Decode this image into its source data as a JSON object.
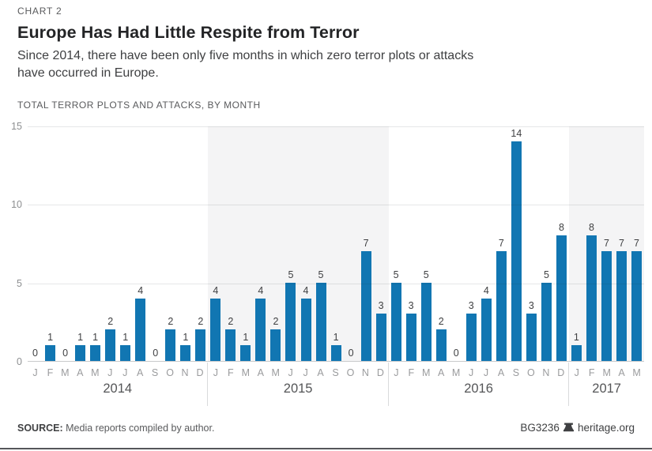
{
  "header": {
    "kicker": "CHART 2",
    "title": "Europe Has Had Little Respite from Terror",
    "subtitle_lines": [
      "Since 2014, there have been only five months in which zero terror plots or attacks",
      "have occurred in Europe."
    ],
    "section_label": "TOTAL TERROR PLOTS AND ATTACKS, BY MONTH"
  },
  "chart_data": {
    "type": "bar",
    "title": "TOTAL TERROR PLOTS AND ATTACKS, BY MONTH",
    "xlabel": "",
    "ylabel": "",
    "ylim": [
      0,
      15
    ],
    "yticks": [
      0,
      5,
      10,
      15
    ],
    "grid": true,
    "legend": false,
    "bar_color": "#1176B2",
    "shaded_band_color": "#F4F4F5",
    "value_label_color": "#3F4042",
    "axis_label_color": "#9A9B9D",
    "groups": [
      {
        "year": "2014",
        "shaded": false,
        "months": [
          "J",
          "F",
          "M",
          "A",
          "M",
          "J",
          "J",
          "A",
          "S",
          "O",
          "N",
          "D"
        ],
        "values": [
          0,
          1,
          0,
          1,
          1,
          2,
          1,
          4,
          0,
          2,
          1,
          2
        ]
      },
      {
        "year": "2015",
        "shaded": true,
        "months": [
          "J",
          "F",
          "M",
          "A",
          "M",
          "J",
          "J",
          "A",
          "S",
          "O",
          "N",
          "D"
        ],
        "values": [
          4,
          2,
          1,
          4,
          2,
          5,
          4,
          5,
          1,
          0,
          7,
          3
        ]
      },
      {
        "year": "2016",
        "shaded": false,
        "months": [
          "J",
          "F",
          "M",
          "A",
          "M",
          "J",
          "J",
          "A",
          "S",
          "O",
          "N",
          "D"
        ],
        "values": [
          5,
          3,
          5,
          2,
          0,
          3,
          4,
          7,
          14,
          3,
          5,
          8
        ]
      },
      {
        "year": "2017",
        "shaded": true,
        "months": [
          "J",
          "F",
          "M",
          "A",
          "M"
        ],
        "values": [
          1,
          8,
          7,
          7,
          7
        ]
      }
    ]
  },
  "footer": {
    "source_label": "SOURCE:",
    "source_text": "Media reports compiled by author.",
    "doc_id": "BG3236",
    "site": "heritage.org"
  }
}
